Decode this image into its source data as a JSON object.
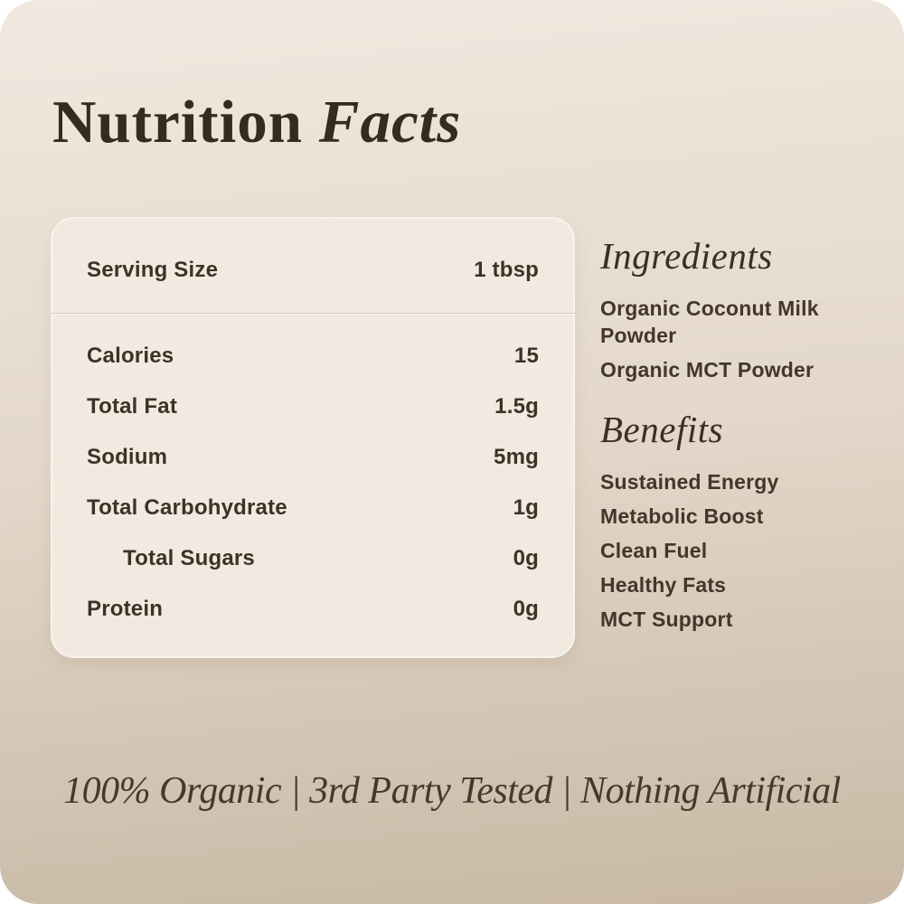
{
  "title": {
    "regular": "Nutrition",
    "italic": "Facts"
  },
  "nutrition_card": {
    "serving_row": {
      "label": "Serving Size",
      "value": "1 tbsp"
    },
    "rows": [
      {
        "label": "Calories",
        "value": "15"
      },
      {
        "label": "Total Fat",
        "value": "1.5g"
      },
      {
        "label": "Sodium",
        "value": "5mg"
      },
      {
        "label": "Total Carbohydrate",
        "value": "1g"
      },
      {
        "label": "Total Sugars",
        "value": "0g"
      },
      {
        "label": "Protein",
        "value": "0g"
      }
    ]
  },
  "ingredients": {
    "heading": "Ingredients",
    "items": [
      "Organic Coconut Milk Powder",
      "Organic MCT Powder"
    ]
  },
  "benefits": {
    "heading": "Benefits",
    "items": [
      "Sustained Energy",
      "Metabolic Boost",
      "Clean Fuel",
      "Healthy Fats",
      "MCT Support"
    ]
  },
  "footer": {
    "tagline": "100% Organic | 3rd Party Tested | Nothing Artificial"
  },
  "colors": {
    "bg-top": "#f1e9e0",
    "bg-mid": "#e3d8ca",
    "bg-bottom": "#c8b8a5",
    "card-bg": "#f2eae1",
    "card-border": "#f8f3ec",
    "divider": "#d6cbbe",
    "ink": "#362b20",
    "ink-soft": "#43362a"
  }
}
